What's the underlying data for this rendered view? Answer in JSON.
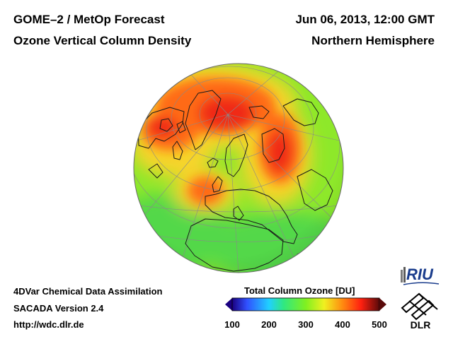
{
  "header": {
    "title_left": "GOME–2 / MetOp Forecast",
    "subtitle_left": "Ozone Vertical Column Density",
    "title_right": "Jun 06, 2013, 12:00 GMT",
    "subtitle_right": "Northern Hemisphere"
  },
  "footer": {
    "line1": "4DVar Chemical Data Assimilation",
    "line2": "SACADA Version 2.4",
    "line3": "http://wdc.dlr.de"
  },
  "colorbar": {
    "title": "Total Column Ozone [DU]",
    "min": 100,
    "max": 500,
    "ticks": [
      "100",
      "200",
      "300",
      "400",
      "500"
    ],
    "tick_values": [
      100,
      200,
      300,
      400,
      500
    ],
    "stops": [
      {
        "value": 100,
        "color": "#1a0080"
      },
      {
        "value": 140,
        "color": "#3050ff"
      },
      {
        "value": 200,
        "color": "#20d0ff"
      },
      {
        "value": 240,
        "color": "#30e880"
      },
      {
        "value": 300,
        "color": "#80f020"
      },
      {
        "value": 350,
        "color": "#f0f020"
      },
      {
        "value": 400,
        "color": "#ff8a10"
      },
      {
        "value": 450,
        "color": "#ff2010"
      },
      {
        "value": 500,
        "color": "#5a0a0a"
      }
    ]
  },
  "logos": {
    "riu": "RIU",
    "dlr": "DLR"
  },
  "map": {
    "projection": "orthographic",
    "hemisphere": "Northern Hemisphere",
    "field": "Total Column Ozone",
    "unit": "DU",
    "base_value_du": 320,
    "highs_du": [
      {
        "region": "North Pole / Arctic Ocean",
        "value": 450
      },
      {
        "region": "Eastern Siberia / Kamchatka",
        "value": 450
      },
      {
        "region": "Greenland / Baffin Bay",
        "value": 430
      },
      {
        "region": "Eastern Europe",
        "value": 400
      }
    ],
    "low_du": 300,
    "colors": {
      "base": "#8ee82a",
      "tropics": "#52d84a",
      "high": "#ff6a18",
      "highcore": "#f02a18",
      "mid": "#f7d42a",
      "coast": "#1a1a1a",
      "grid": "#8a8a8a"
    }
  }
}
